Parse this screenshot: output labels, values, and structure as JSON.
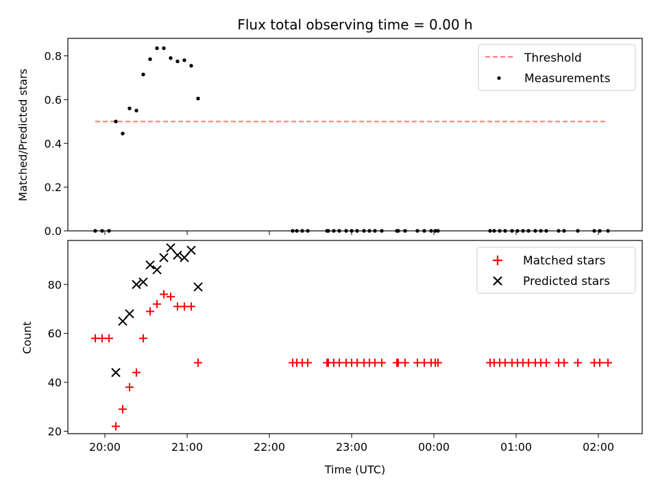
{
  "figure": {
    "title": "Flux total observing time = 0.00 h",
    "xlabel": "Time (UTC)",
    "xticks": [
      {
        "v": 0,
        "label": "20:00"
      },
      {
        "v": 60,
        "label": "21:00"
      },
      {
        "v": 120,
        "label": "22:00"
      },
      {
        "v": 180,
        "label": "23:00"
      },
      {
        "v": 240,
        "label": "00:00"
      },
      {
        "v": 300,
        "label": "01:00"
      },
      {
        "v": 360,
        "label": "02:00"
      }
    ]
  },
  "chart_data": [
    {
      "type": "scatter",
      "ylabel": "Matched/Predicted stars",
      "xlim": [
        -27,
        392
      ],
      "ylim": [
        0,
        0.88
      ],
      "yticks": [
        {
          "v": 0.0,
          "label": "0.0"
        },
        {
          "v": 0.2,
          "label": "0.2"
        },
        {
          "v": 0.4,
          "label": "0.4"
        },
        {
          "v": 0.6,
          "label": "0.6"
        },
        {
          "v": 0.8,
          "label": "0.8"
        }
      ],
      "legend_position": "upper right",
      "threshold": {
        "name": "Threshold",
        "value": 0.5,
        "x_range": [
          -7,
          367
        ],
        "color": "#ff7777"
      },
      "series": [
        {
          "name": "Measurements",
          "color": "#000000",
          "points": [
            [
              -7,
              0
            ],
            [
              -2,
              0
            ],
            [
              3,
              0
            ],
            [
              8,
              0.5
            ],
            [
              13,
              0.445
            ],
            [
              18,
              0.56
            ],
            [
              23,
              0.55
            ],
            [
              28,
              0.715
            ],
            [
              33,
              0.785
            ],
            [
              38,
              0.835
            ],
            [
              43,
              0.835
            ],
            [
              48,
              0.79
            ],
            [
              53,
              0.775
            ],
            [
              58,
              0.78
            ],
            [
              63,
              0.755
            ],
            [
              68,
              0.605
            ],
            [
              137,
              0
            ],
            [
              140,
              0
            ],
            [
              144,
              0
            ],
            [
              148,
              0
            ],
            [
              162,
              0
            ],
            [
              163,
              0
            ],
            [
              167,
              0
            ],
            [
              171,
              0
            ],
            [
              176,
              0
            ],
            [
              180,
              0
            ],
            [
              184,
              0
            ],
            [
              189,
              0
            ],
            [
              193,
              0
            ],
            [
              197,
              0
            ],
            [
              202,
              0
            ],
            [
              213,
              0
            ],
            [
              214,
              0
            ],
            [
              219,
              0
            ],
            [
              228,
              0
            ],
            [
              233,
              0
            ],
            [
              238,
              0
            ],
            [
              241,
              0
            ],
            [
              243,
              0
            ],
            [
              281,
              0
            ],
            [
              284,
              0
            ],
            [
              288,
              0
            ],
            [
              292,
              0
            ],
            [
              297,
              0
            ],
            [
              301,
              0
            ],
            [
              305,
              0
            ],
            [
              309,
              0
            ],
            [
              314,
              0
            ],
            [
              318,
              0
            ],
            [
              322,
              0
            ],
            [
              331,
              0
            ],
            [
              335,
              0
            ],
            [
              345,
              0
            ],
            [
              357,
              0
            ],
            [
              361,
              0
            ],
            [
              367,
              0
            ]
          ]
        }
      ]
    },
    {
      "type": "scatter",
      "ylabel": "Count",
      "xlim": [
        -27,
        392
      ],
      "ylim": [
        19,
        98
      ],
      "yticks": [
        {
          "v": 20,
          "label": "20"
        },
        {
          "v": 40,
          "label": "40"
        },
        {
          "v": 60,
          "label": "60"
        },
        {
          "v": 80,
          "label": "80"
        }
      ],
      "legend_position": "upper right",
      "series": [
        {
          "name": "Matched stars",
          "marker": "plus",
          "color": "#ff0000",
          "points": [
            [
              -7,
              58
            ],
            [
              -2,
              58
            ],
            [
              3,
              58
            ],
            [
              8,
              22
            ],
            [
              13,
              29
            ],
            [
              18,
              38
            ],
            [
              23,
              44
            ],
            [
              28,
              58
            ],
            [
              33,
              69
            ],
            [
              38,
              72
            ],
            [
              43,
              76
            ],
            [
              48,
              75
            ],
            [
              53,
              71
            ],
            [
              58,
              71
            ],
            [
              63,
              71
            ],
            [
              68,
              48
            ],
            [
              137,
              48
            ],
            [
              140,
              48
            ],
            [
              144,
              48
            ],
            [
              148,
              48
            ],
            [
              162,
              48
            ],
            [
              163,
              48
            ],
            [
              167,
              48
            ],
            [
              171,
              48
            ],
            [
              176,
              48
            ],
            [
              180,
              48
            ],
            [
              184,
              48
            ],
            [
              189,
              48
            ],
            [
              193,
              48
            ],
            [
              197,
              48
            ],
            [
              202,
              48
            ],
            [
              213,
              48
            ],
            [
              214,
              48
            ],
            [
              219,
              48
            ],
            [
              228,
              48
            ],
            [
              233,
              48
            ],
            [
              238,
              48
            ],
            [
              241,
              48
            ],
            [
              243,
              48
            ],
            [
              281,
              48
            ],
            [
              284,
              48
            ],
            [
              288,
              48
            ],
            [
              292,
              48
            ],
            [
              297,
              48
            ],
            [
              301,
              48
            ],
            [
              305,
              48
            ],
            [
              309,
              48
            ],
            [
              314,
              48
            ],
            [
              318,
              48
            ],
            [
              322,
              48
            ],
            [
              331,
              48
            ],
            [
              335,
              48
            ],
            [
              345,
              48
            ],
            [
              357,
              48
            ],
            [
              361,
              48
            ],
            [
              367,
              48
            ]
          ]
        },
        {
          "name": "Predicted stars",
          "marker": "x",
          "color": "#000000",
          "points": [
            [
              8,
              44
            ],
            [
              13,
              65
            ],
            [
              18,
              68
            ],
            [
              23,
              80
            ],
            [
              28,
              81
            ],
            [
              33,
              88
            ],
            [
              38,
              86
            ],
            [
              43,
              91
            ],
            [
              48,
              95
            ],
            [
              53,
              92
            ],
            [
              58,
              91
            ],
            [
              63,
              94
            ],
            [
              68,
              79
            ]
          ]
        }
      ]
    }
  ]
}
